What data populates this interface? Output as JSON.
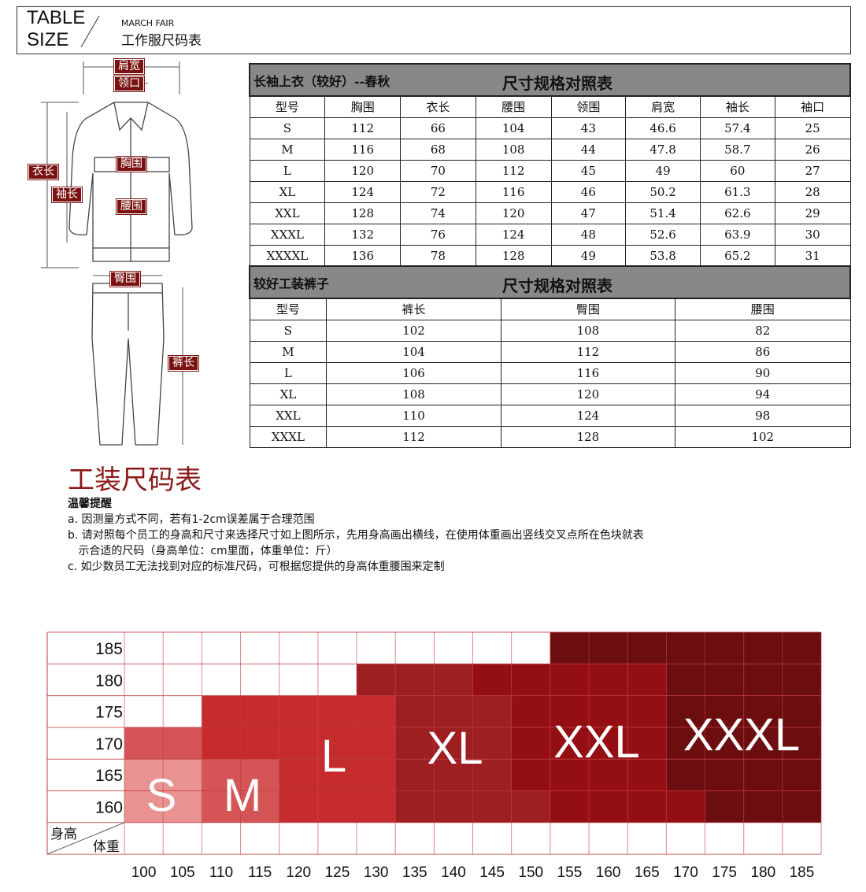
{
  "header": {
    "line1": "TABLE",
    "line2": "SIZE",
    "brand": "MARCH FAIR",
    "title": "工作服尺码表"
  },
  "labels": {
    "shoulder": "肩宽",
    "collar": "领口",
    "chest": "胸围",
    "length": "衣长",
    "sleeve": "袖长",
    "waist": "腰围",
    "hip": "臀围",
    "pants_length": "裤长"
  },
  "jacket_table": {
    "name": "长袖上衣（较好）--春秋",
    "title": "尺寸规格对照表",
    "headers": [
      "型号",
      "胸围",
      "衣长",
      "腰围",
      "领围",
      "肩宽",
      "袖长",
      "袖口"
    ],
    "rows": [
      [
        "S",
        "112",
        "66",
        "104",
        "43",
        "46.6",
        "57.4",
        "25"
      ],
      [
        "M",
        "116",
        "68",
        "108",
        "44",
        "47.8",
        "58.7",
        "26"
      ],
      [
        "L",
        "120",
        "70",
        "112",
        "45",
        "49",
        "60",
        "27"
      ],
      [
        "XL",
        "124",
        "72",
        "116",
        "46",
        "50.2",
        "61.3",
        "28"
      ],
      [
        "XXL",
        "128",
        "74",
        "120",
        "47",
        "51.4",
        "62.6",
        "29"
      ],
      [
        "XXXL",
        "132",
        "76",
        "124",
        "48",
        "52.6",
        "63.9",
        "30"
      ],
      [
        "XXXXL",
        "136",
        "78",
        "128",
        "49",
        "53.8",
        "65.2",
        "31"
      ]
    ]
  },
  "pants_table": {
    "name": "较好工装裤子",
    "title": "尺寸规格对照表",
    "headers": [
      "型号",
      "裤长",
      "臀围",
      "腰围"
    ],
    "rows": [
      [
        "S",
        "102",
        "108",
        "82"
      ],
      [
        "M",
        "104",
        "112",
        "86"
      ],
      [
        "L",
        "106",
        "116",
        "90"
      ],
      [
        "XL",
        "108",
        "120",
        "94"
      ],
      [
        "XXL",
        "110",
        "124",
        "98"
      ],
      [
        "XXXL",
        "112",
        "128",
        "102"
      ]
    ]
  },
  "guide": {
    "title": "工装尺码表",
    "subtitle": "温馨提醒",
    "notes": [
      "a. 因测量方式不同，若有1-2cm误差属于合理范围",
      "b. 请对照每个员工的身高和尺寸来选择尺寸如上图所示，先用身高画出横线，在使用体重画出竖线交叉点所在色块就表",
      "   示合适的尺码（身高单位：cm里面，体重单位：斤）",
      "c. 如少数员工无法找到对应的标准尺码，可根据您提供的身高体重腰围来定制"
    ]
  },
  "chart_data": {
    "type": "heatmap",
    "ylabel": "身高",
    "xlabel": "体重",
    "heights": [
      "185",
      "180",
      "175",
      "170",
      "165",
      "160"
    ],
    "weights": [
      "100",
      "105",
      "110",
      "115",
      "120",
      "125",
      "130",
      "135",
      "140",
      "145",
      "150",
      "155",
      "160",
      "165",
      "170",
      "175",
      "180",
      "185"
    ],
    "colors": {
      "S": "#e99292",
      "M": "#d55557",
      "L": "#c62b2e",
      "XL": "#9d1f21",
      "XXL": "#940f13",
      "XXXL": "#6c0d0f"
    },
    "cells": [
      [
        "",
        "",
        "",
        "",
        "",
        "",
        "",
        "",
        "",
        "",
        "",
        "XXXL",
        "XXXL",
        "XXXL",
        "XXXL",
        "XXXL",
        "XXXL",
        "XXXL"
      ],
      [
        "",
        "",
        "",
        "",
        "",
        "",
        "XL",
        "XL",
        "XL",
        "XXL",
        "XXL",
        "XXL",
        "XXL",
        "XXL",
        "XXXL",
        "XXXL",
        "XXXL",
        "XXXL"
      ],
      [
        "",
        "",
        "L",
        "L",
        "L",
        "L",
        "L",
        "XL",
        "XL",
        "XL",
        "XXL",
        "XXL",
        "XXL",
        "XXL",
        "XXXL",
        "XXXL",
        "XXXL",
        "XXXL"
      ],
      [
        "M",
        "M",
        "L",
        "L",
        "L",
        "L",
        "L",
        "XL",
        "XL",
        "XL",
        "XXL",
        "XXL",
        "XXL",
        "XXL",
        "XXXL",
        "XXXL",
        "XXXL",
        "XXXL"
      ],
      [
        "S",
        "S",
        "M",
        "M",
        "L",
        "L",
        "L",
        "XL",
        "XL",
        "XL",
        "XXL",
        "XXL",
        "XXL",
        "XXL",
        "XXXL",
        "XXXL",
        "XXXL",
        "XXXL"
      ],
      [
        "S",
        "S",
        "M",
        "M",
        "L",
        "L",
        "L",
        "XL",
        "XL",
        "XL",
        "XL",
        "XXL",
        "XXL",
        "XXL",
        "XXL",
        "XXXL",
        "XXXL",
        "XXXL"
      ]
    ],
    "size_labels": [
      "S",
      "M",
      "L",
      "XL",
      "XXL",
      "XXXL"
    ]
  }
}
